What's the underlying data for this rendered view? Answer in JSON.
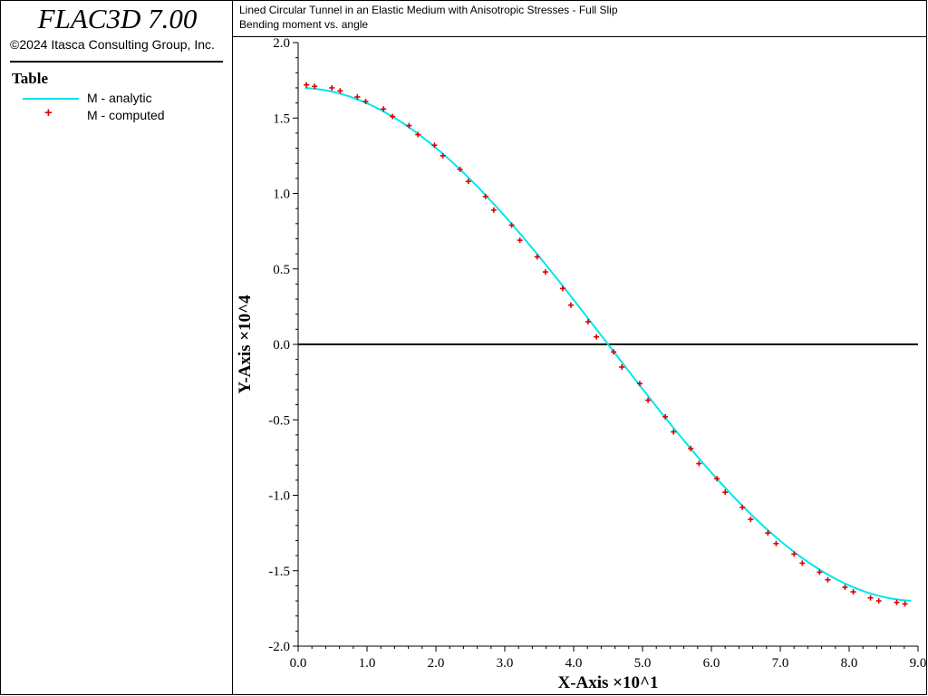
{
  "app": {
    "title": "FLAC3D 7.00",
    "copyright": "©2024 Itasca Consulting Group, Inc."
  },
  "legend": {
    "title": "Table",
    "items": [
      {
        "label": "M - analytic",
        "color": "#00e5ee",
        "style": "line"
      },
      {
        "label": "M - computed",
        "color": "#e00000",
        "style": "plus"
      }
    ]
  },
  "chart_data": {
    "type": "line",
    "title": "Lined Circular Tunnel in an Elastic Medium with Anisotropic Stresses - Full Slip",
    "subtitle": "Bending moment vs. angle",
    "xlabel": "X-Axis ×10^1",
    "ylabel": "Y-Axis ×10^4",
    "xlim": [
      0,
      9
    ],
    "ylim": [
      -2,
      2
    ],
    "x_ticks": [
      "0.0",
      "1.0",
      "2.0",
      "3.0",
      "4.0",
      "5.0",
      "6.0",
      "7.0",
      "8.0",
      "9.0"
    ],
    "y_ticks": [
      "2.0",
      "1.5",
      "1.0",
      "0.5",
      "0.0",
      "-0.5",
      "-1.0",
      "-1.5",
      "-2.0"
    ],
    "zero_line": true,
    "series": [
      {
        "name": "M - analytic",
        "style": "line",
        "color": "#00e5ee",
        "function": {
          "amplitude": 1.7,
          "x_period_half": 9
        },
        "x_range": [
          0.1,
          8.9
        ]
      },
      {
        "name": "M - computed",
        "style": "plus",
        "color": "#e00000",
        "x": [
          0.12,
          0.24,
          0.49,
          0.61,
          0.86,
          0.98,
          1.24,
          1.37,
          1.61,
          1.74,
          1.98,
          2.1,
          2.35,
          2.47,
          2.72,
          2.84,
          3.1,
          3.22,
          3.47,
          3.59,
          3.84,
          3.96,
          4.21,
          4.33,
          4.58,
          4.7,
          4.96,
          5.08,
          5.33,
          5.45,
          5.7,
          5.82,
          6.08,
          6.2,
          6.45,
          6.57,
          6.82,
          6.94,
          7.2,
          7.32,
          7.57,
          7.69,
          7.94,
          8.06,
          8.31,
          8.43,
          8.69,
          8.81
        ],
        "y": [
          1.72,
          1.71,
          1.7,
          1.68,
          1.64,
          1.61,
          1.56,
          1.51,
          1.45,
          1.39,
          1.32,
          1.25,
          1.16,
          1.08,
          0.98,
          0.89,
          0.79,
          0.69,
          0.58,
          0.48,
          0.37,
          0.26,
          0.15,
          0.05,
          -0.05,
          -0.15,
          -0.26,
          -0.37,
          -0.48,
          -0.58,
          -0.69,
          -0.79,
          -0.89,
          -0.98,
          -1.08,
          -1.16,
          -1.25,
          -1.32,
          -1.39,
          -1.45,
          -1.51,
          -1.56,
          -1.61,
          -1.64,
          -1.68,
          -1.7,
          -1.71,
          -1.72
        ]
      }
    ]
  }
}
